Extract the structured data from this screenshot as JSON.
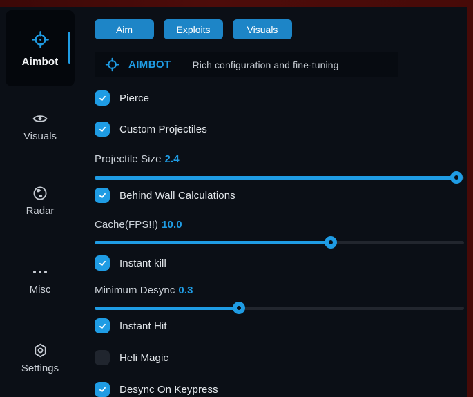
{
  "colors": {
    "accent": "#1f9ce4",
    "tab_blue": "#1d85c7",
    "menu_background": "#0b0f16",
    "header_bar": "#070b11",
    "active_card": "#04070c",
    "backdrop_red": "#4d0c0a",
    "slider_track": "#22262e",
    "checkbox_off": "#20252e"
  },
  "sidebar": {
    "items": [
      {
        "label": "Aimbot",
        "icon": "crosshair-icon",
        "active": true
      },
      {
        "label": "Visuals",
        "icon": "eye-icon",
        "active": false
      },
      {
        "label": "Radar",
        "icon": "radar-icon",
        "active": false
      },
      {
        "label": "Misc",
        "icon": "ellipsis-icon",
        "active": false
      },
      {
        "label": "Settings",
        "icon": "gear-icon",
        "active": false
      }
    ]
  },
  "tabs": [
    {
      "label": "Aim"
    },
    {
      "label": "Exploits"
    },
    {
      "label": "Visuals"
    }
  ],
  "header": {
    "icon": "crosshair-icon",
    "title": "AIMBOT",
    "subtitle": "Rich configuration and fine-tuning"
  },
  "controls": [
    {
      "type": "checkbox",
      "label": "Pierce",
      "checked": true
    },
    {
      "type": "checkbox",
      "label": "Custom Projectiles",
      "checked": true
    },
    {
      "type": "slider",
      "label": "Projectile Size",
      "value": "2.4",
      "fill_percent": 98
    },
    {
      "type": "checkbox",
      "label": "Behind Wall Calculations",
      "checked": true
    },
    {
      "type": "slider",
      "label": "Cache(FPS!!)",
      "value": "10.0",
      "fill_percent": 64
    },
    {
      "type": "checkbox",
      "label": "Instant kill",
      "checked": true
    },
    {
      "type": "slider",
      "label": "Minimum Desync",
      "value": "0.3",
      "fill_percent": 39
    },
    {
      "type": "checkbox",
      "label": "Instant Hit",
      "checked": true
    },
    {
      "type": "checkbox",
      "label": "Heli Magic",
      "checked": false
    },
    {
      "type": "checkbox",
      "label": "Desync On Keypress",
      "checked": true
    }
  ]
}
